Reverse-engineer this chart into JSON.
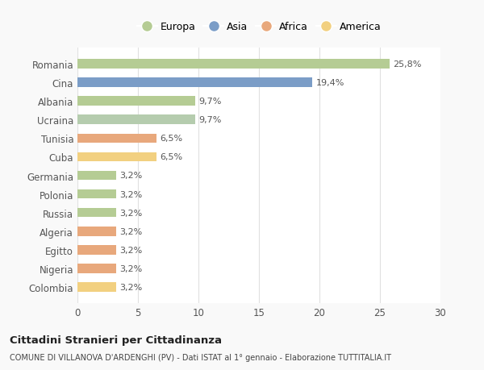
{
  "categories": [
    "Romania",
    "Cina",
    "Albania",
    "Ucraina",
    "Tunisia",
    "Cuba",
    "Germania",
    "Polonia",
    "Russia",
    "Algeria",
    "Egitto",
    "Nigeria",
    "Colombia"
  ],
  "values": [
    25.8,
    19.4,
    9.7,
    9.7,
    6.5,
    6.5,
    3.2,
    3.2,
    3.2,
    3.2,
    3.2,
    3.2,
    3.2
  ],
  "labels": [
    "25,8%",
    "19,4%",
    "9,7%",
    "9,7%",
    "6,5%",
    "6,5%",
    "3,2%",
    "3,2%",
    "3,2%",
    "3,2%",
    "3,2%",
    "3,2%",
    "3,2%"
  ],
  "colors": [
    "#b5cc94",
    "#7b9dc7",
    "#b5cc94",
    "#b5ccae",
    "#e8a87c",
    "#f2d080",
    "#b5cc94",
    "#b5cc94",
    "#b5cc94",
    "#e8a87c",
    "#e8a87c",
    "#e8a87c",
    "#f2d080"
  ],
  "legend_labels": [
    "Europa",
    "Asia",
    "Africa",
    "America"
  ],
  "legend_colors": [
    "#b5cc94",
    "#7b9dc7",
    "#e8a87c",
    "#f2d080"
  ],
  "title": "Cittadini Stranieri per Cittadinanza",
  "subtitle": "COMUNE DI VILLANOVA D'ARDENGHI (PV) - Dati ISTAT al 1° gennaio - Elaborazione TUTTITALIA.IT",
  "xlim": [
    0,
    30
  ],
  "xticks": [
    0,
    5,
    10,
    15,
    20,
    25,
    30
  ],
  "background_color": "#f9f9f9",
  "plot_background": "#ffffff",
  "grid_color": "#e0e0e0",
  "bar_height": 0.5
}
